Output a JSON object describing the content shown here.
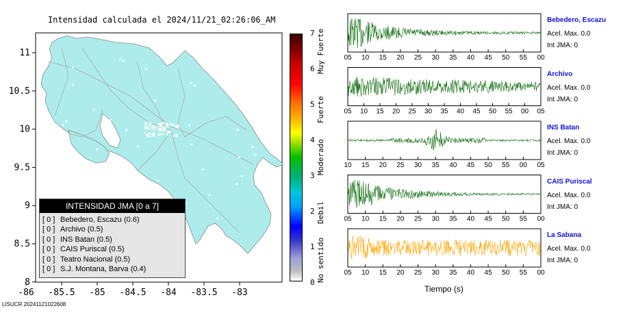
{
  "map": {
    "title": "Intensidad calculada el 2024/11/21_02:26:06_AM",
    "land_color": "#aeecec",
    "road_color": "#aaaaaa",
    "x_ticks": [
      "-86",
      "-85.5",
      "-85",
      "-84.5",
      "-84",
      "-83.5",
      "-83"
    ],
    "y_ticks": [
      "11",
      "10.5",
      "10",
      "9.5",
      "9",
      "8.5",
      "8"
    ]
  },
  "legend": {
    "header": "INTENSIDAD JMA [0 a 7]",
    "rows": [
      {
        "bracket": "[ 0 ]",
        "text": "Bebedero, Escazu (0.6)"
      },
      {
        "bracket": "[ 0 ]",
        "text": "Archivo (0.5)"
      },
      {
        "bracket": "[ 0 ]",
        "text": "INS Batan (0.5)"
      },
      {
        "bracket": "[ 0 ]",
        "text": "CAIS Puriscal (0.5)"
      },
      {
        "bracket": "[ 0 ]",
        "text": "Teatro Nacional (0.5)"
      },
      {
        "bracket": "[ 0 ]",
        "text": "S.J. Montana, Barva (0.4)"
      }
    ]
  },
  "colorbar": {
    "ticks": [
      "7",
      "6",
      "5",
      "4",
      "3",
      "2",
      "1",
      "0"
    ],
    "labels": [
      "Muy Fuerte",
      "Fuerte",
      "Moderado",
      "Debil",
      "No sentido"
    ]
  },
  "stations": [
    {
      "name": "Bebedero, Escazu",
      "acel": "Acel. Max. 0.0",
      "int": "Int JMA: 0",
      "color": "#006400",
      "ticks": [
        "05",
        "10",
        "15",
        "20",
        "25",
        "30",
        "35",
        "40",
        "45",
        "50",
        "55",
        "00"
      ]
    },
    {
      "name": "Archivo",
      "acel": "Acel. Max. 0.0",
      "int": "Int JMA: 0",
      "color": "#006400",
      "ticks": [
        "05",
        "10",
        "15",
        "20",
        "25",
        "30",
        "35",
        "40",
        "45",
        "50",
        "55",
        "00",
        "05"
      ]
    },
    {
      "name": "INS Batan",
      "acel": "Acel. Max. 0.0",
      "int": "Int JMA: 0",
      "color": "#006400",
      "ticks": [
        "10",
        "15",
        "20",
        "25",
        "30",
        "35",
        "40",
        "45",
        "50",
        "55",
        "00",
        "05"
      ]
    },
    {
      "name": "CAIS Puriscal",
      "acel": "Acel. Max. 0.0",
      "int": "Int JMA: 0",
      "color": "#006400",
      "ticks": [
        "05",
        "10",
        "15",
        "20",
        "25",
        "30",
        "35",
        "40",
        "45",
        "50",
        "55",
        "00"
      ]
    },
    {
      "name": "La Sabana",
      "acel": "Acel. Max. 0.0",
      "int": "Int JMA: 0",
      "color": "#ffa500",
      "ticks": [
        "05",
        "10",
        "15",
        "20",
        "25",
        "30",
        "35",
        "40",
        "45",
        "50",
        "55",
        "00"
      ]
    }
  ],
  "x_axis_title": "Tiempo (s)",
  "footer": "LISUCR 20241121022608",
  "chart_data": {
    "type": "map",
    "title": "Intensidad calculada el 2024/11/21_02:26:06_AM",
    "x_ticks": [
      -86,
      -85.5,
      -85,
      -84.5,
      -84,
      -83.5,
      -83
    ],
    "y_ticks": [
      11,
      10.5,
      10,
      9.5,
      9,
      8.5,
      8
    ],
    "colorbar_range": [
      0,
      7
    ]
  }
}
